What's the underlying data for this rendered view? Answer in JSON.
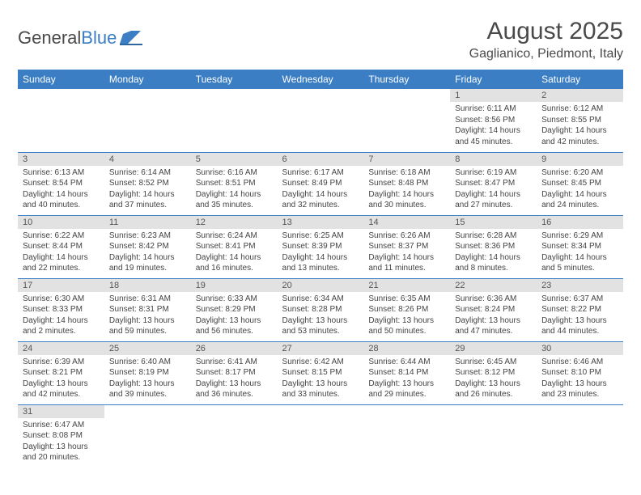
{
  "logo": {
    "text1": "General",
    "text2": "Blue"
  },
  "title": "August 2025",
  "location": "Gaglianico, Piedmont, Italy",
  "colors": {
    "header_bg": "#3b7ec4",
    "header_fg": "#ffffff",
    "daynum_bg": "#e2e2e2",
    "rule": "#3b7ec4",
    "text": "#4a4a4a"
  },
  "weekdays": [
    "Sunday",
    "Monday",
    "Tuesday",
    "Wednesday",
    "Thursday",
    "Friday",
    "Saturday"
  ],
  "weeks": [
    [
      null,
      null,
      null,
      null,
      null,
      {
        "n": "1",
        "sr": "Sunrise: 6:11 AM",
        "ss": "Sunset: 8:56 PM",
        "dl": "Daylight: 14 hours and 45 minutes."
      },
      {
        "n": "2",
        "sr": "Sunrise: 6:12 AM",
        "ss": "Sunset: 8:55 PM",
        "dl": "Daylight: 14 hours and 42 minutes."
      }
    ],
    [
      {
        "n": "3",
        "sr": "Sunrise: 6:13 AM",
        "ss": "Sunset: 8:54 PM",
        "dl": "Daylight: 14 hours and 40 minutes."
      },
      {
        "n": "4",
        "sr": "Sunrise: 6:14 AM",
        "ss": "Sunset: 8:52 PM",
        "dl": "Daylight: 14 hours and 37 minutes."
      },
      {
        "n": "5",
        "sr": "Sunrise: 6:16 AM",
        "ss": "Sunset: 8:51 PM",
        "dl": "Daylight: 14 hours and 35 minutes."
      },
      {
        "n": "6",
        "sr": "Sunrise: 6:17 AM",
        "ss": "Sunset: 8:49 PM",
        "dl": "Daylight: 14 hours and 32 minutes."
      },
      {
        "n": "7",
        "sr": "Sunrise: 6:18 AM",
        "ss": "Sunset: 8:48 PM",
        "dl": "Daylight: 14 hours and 30 minutes."
      },
      {
        "n": "8",
        "sr": "Sunrise: 6:19 AM",
        "ss": "Sunset: 8:47 PM",
        "dl": "Daylight: 14 hours and 27 minutes."
      },
      {
        "n": "9",
        "sr": "Sunrise: 6:20 AM",
        "ss": "Sunset: 8:45 PM",
        "dl": "Daylight: 14 hours and 24 minutes."
      }
    ],
    [
      {
        "n": "10",
        "sr": "Sunrise: 6:22 AM",
        "ss": "Sunset: 8:44 PM",
        "dl": "Daylight: 14 hours and 22 minutes."
      },
      {
        "n": "11",
        "sr": "Sunrise: 6:23 AM",
        "ss": "Sunset: 8:42 PM",
        "dl": "Daylight: 14 hours and 19 minutes."
      },
      {
        "n": "12",
        "sr": "Sunrise: 6:24 AM",
        "ss": "Sunset: 8:41 PM",
        "dl": "Daylight: 14 hours and 16 minutes."
      },
      {
        "n": "13",
        "sr": "Sunrise: 6:25 AM",
        "ss": "Sunset: 8:39 PM",
        "dl": "Daylight: 14 hours and 13 minutes."
      },
      {
        "n": "14",
        "sr": "Sunrise: 6:26 AM",
        "ss": "Sunset: 8:37 PM",
        "dl": "Daylight: 14 hours and 11 minutes."
      },
      {
        "n": "15",
        "sr": "Sunrise: 6:28 AM",
        "ss": "Sunset: 8:36 PM",
        "dl": "Daylight: 14 hours and 8 minutes."
      },
      {
        "n": "16",
        "sr": "Sunrise: 6:29 AM",
        "ss": "Sunset: 8:34 PM",
        "dl": "Daylight: 14 hours and 5 minutes."
      }
    ],
    [
      {
        "n": "17",
        "sr": "Sunrise: 6:30 AM",
        "ss": "Sunset: 8:33 PM",
        "dl": "Daylight: 14 hours and 2 minutes."
      },
      {
        "n": "18",
        "sr": "Sunrise: 6:31 AM",
        "ss": "Sunset: 8:31 PM",
        "dl": "Daylight: 13 hours and 59 minutes."
      },
      {
        "n": "19",
        "sr": "Sunrise: 6:33 AM",
        "ss": "Sunset: 8:29 PM",
        "dl": "Daylight: 13 hours and 56 minutes."
      },
      {
        "n": "20",
        "sr": "Sunrise: 6:34 AM",
        "ss": "Sunset: 8:28 PM",
        "dl": "Daylight: 13 hours and 53 minutes."
      },
      {
        "n": "21",
        "sr": "Sunrise: 6:35 AM",
        "ss": "Sunset: 8:26 PM",
        "dl": "Daylight: 13 hours and 50 minutes."
      },
      {
        "n": "22",
        "sr": "Sunrise: 6:36 AM",
        "ss": "Sunset: 8:24 PM",
        "dl": "Daylight: 13 hours and 47 minutes."
      },
      {
        "n": "23",
        "sr": "Sunrise: 6:37 AM",
        "ss": "Sunset: 8:22 PM",
        "dl": "Daylight: 13 hours and 44 minutes."
      }
    ],
    [
      {
        "n": "24",
        "sr": "Sunrise: 6:39 AM",
        "ss": "Sunset: 8:21 PM",
        "dl": "Daylight: 13 hours and 42 minutes."
      },
      {
        "n": "25",
        "sr": "Sunrise: 6:40 AM",
        "ss": "Sunset: 8:19 PM",
        "dl": "Daylight: 13 hours and 39 minutes."
      },
      {
        "n": "26",
        "sr": "Sunrise: 6:41 AM",
        "ss": "Sunset: 8:17 PM",
        "dl": "Daylight: 13 hours and 36 minutes."
      },
      {
        "n": "27",
        "sr": "Sunrise: 6:42 AM",
        "ss": "Sunset: 8:15 PM",
        "dl": "Daylight: 13 hours and 33 minutes."
      },
      {
        "n": "28",
        "sr": "Sunrise: 6:44 AM",
        "ss": "Sunset: 8:14 PM",
        "dl": "Daylight: 13 hours and 29 minutes."
      },
      {
        "n": "29",
        "sr": "Sunrise: 6:45 AM",
        "ss": "Sunset: 8:12 PM",
        "dl": "Daylight: 13 hours and 26 minutes."
      },
      {
        "n": "30",
        "sr": "Sunrise: 6:46 AM",
        "ss": "Sunset: 8:10 PM",
        "dl": "Daylight: 13 hours and 23 minutes."
      }
    ],
    [
      {
        "n": "31",
        "sr": "Sunrise: 6:47 AM",
        "ss": "Sunset: 8:08 PM",
        "dl": "Daylight: 13 hours and 20 minutes."
      },
      null,
      null,
      null,
      null,
      null,
      null
    ]
  ]
}
